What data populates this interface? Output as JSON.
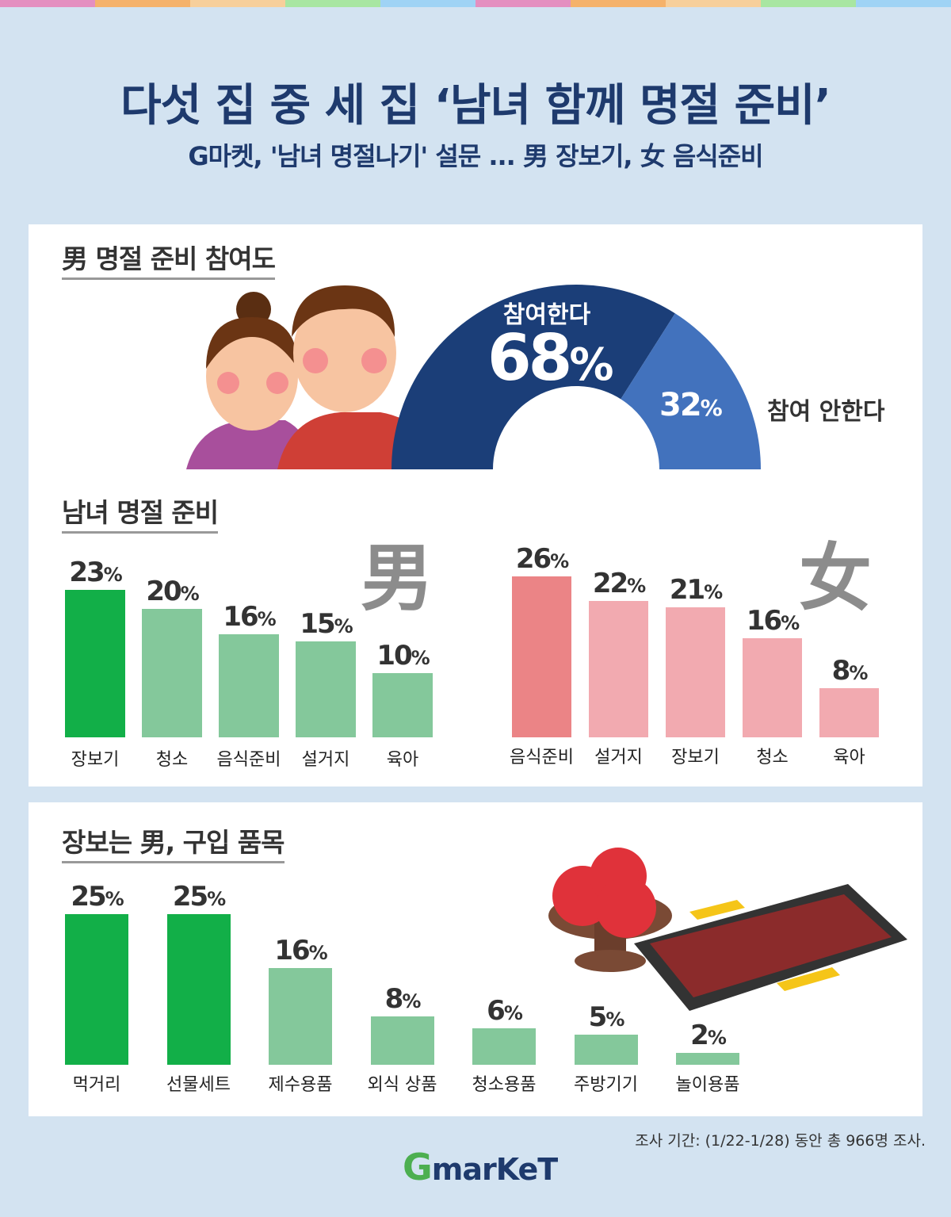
{
  "header": {
    "title": "다섯 집 중 세 집 ‘남녀 함께 명절 준비’",
    "subtitle": "G마켓, '남녀 명절나기' 설문 ... 男 장보기, 女 음식준비"
  },
  "colors": {
    "stripe": [
      "#e48fc0",
      "#f5b26b",
      "#f7cf9b",
      "#a8e6a2",
      "#9fd3f5",
      "#e48fc0",
      "#f5b26b",
      "#f7cf9b",
      "#a8e6a2",
      "#9fd3f5"
    ],
    "navy": "#1b3e78",
    "blue": "#4272bd",
    "green_top": "#12af48",
    "green": "#84c89b",
    "pink_top": "#eb8486",
    "pink": "#f2aab0"
  },
  "chart_data": [
    {
      "type": "pie",
      "title": "男 명절 준비 참여도",
      "slices": [
        {
          "label": "참여한다",
          "value": 68,
          "text": "68"
        },
        {
          "label": "참여 안한다",
          "value": 32,
          "text": "32"
        }
      ],
      "unit": "%"
    },
    {
      "type": "bar",
      "title": "남녀 명절 준비",
      "group_label": "男",
      "categories": [
        "장보기",
        "청소",
        "음식준비",
        "설거지",
        "육아"
      ],
      "values": [
        23,
        20,
        16,
        15,
        10
      ],
      "unit": "%"
    },
    {
      "type": "bar",
      "group_label": "女",
      "categories": [
        "음식준비",
        "설거지",
        "장보기",
        "청소",
        "육아"
      ],
      "values": [
        26,
        22,
        21,
        16,
        8
      ],
      "unit": "%"
    },
    {
      "type": "bar",
      "title": "장보는 男, 구입 품목",
      "categories": [
        "먹거리",
        "선물세트",
        "제수용품",
        "외식 상품",
        "청소용품",
        "주방기기",
        "놀이용품"
      ],
      "values": [
        25,
        25,
        16,
        8,
        6,
        5,
        2
      ],
      "unit": "%"
    }
  ],
  "footer": {
    "note": "조사 기간: (1/22-1/28) 동안 총 966명 조사.",
    "logo_g": "G",
    "logo_text": "marKeT"
  }
}
